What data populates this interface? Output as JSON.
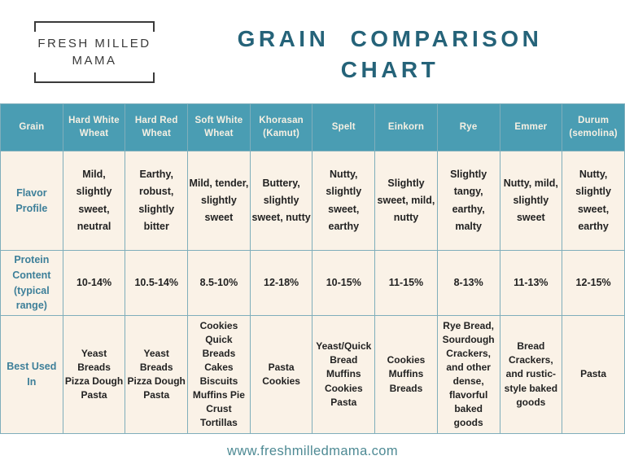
{
  "logo": {
    "line1": "FRESH MILLED",
    "line2": "MAMA"
  },
  "title": {
    "line1": "GRAIN COMPARISON",
    "line2": "CHART"
  },
  "footer": {
    "url": "www.freshmilledmama.com"
  },
  "colors": {
    "header_bg": "#4A9DB3",
    "header_text": "#F6F0E3",
    "cell_bg": "#FAF2E7",
    "grid_border": "#7FAEBB",
    "row_label_text": "#3D7F99",
    "body_text": "#222222",
    "title_text": "#256379",
    "footer_text": "#4E8A94",
    "logo_text": "#3A3A3A"
  },
  "chart_data": {
    "type": "table",
    "title": "Grain Comparison Chart",
    "corner_label": "Grain",
    "columns": [
      "Hard White Wheat",
      "Hard Red Wheat",
      "Soft White Wheat",
      "Khorasan (Kamut)",
      "Spelt",
      "Einkorn",
      "Rye",
      "Emmer",
      "Durum (semolina)"
    ],
    "rows": [
      {
        "label": "Flavor Profile",
        "cells": [
          "Mild, slightly sweet, neutral",
          "Earthy, robust, slightly bitter",
          "Mild, tender, slightly sweet",
          "Buttery, slightly sweet, nutty",
          "Nutty, slightly sweet, earthy",
          "Slightly sweet, mild, nutty",
          "Slightly tangy, earthy, malty",
          "Nutty, mild, slightly sweet",
          "Nutty, slightly sweet, earthy"
        ]
      },
      {
        "label": "Protein Content (typical range)",
        "cells": [
          "10-14%",
          "10.5-14%",
          "8.5-10%",
          "12-18%",
          "10-15%",
          "11-15%",
          "8-13%",
          "11-13%",
          "12-15%"
        ]
      },
      {
        "label": "Best Used In",
        "cells": [
          "Yeast Breads Pizza Dough Pasta",
          "Yeast Breads Pizza Dough Pasta",
          "Cookies Quick Breads Cakes Biscuits Muffins Pie Crust Tortillas",
          "Pasta Cookies",
          "Yeast/Quick Bread Muffins Cookies Pasta",
          "Cookies Muffins Breads",
          "Rye Bread, Sourdough Crackers, and other dense, flavorful baked goods",
          "Bread Crackers, and rustic-style baked goods",
          "Pasta"
        ]
      }
    ]
  }
}
